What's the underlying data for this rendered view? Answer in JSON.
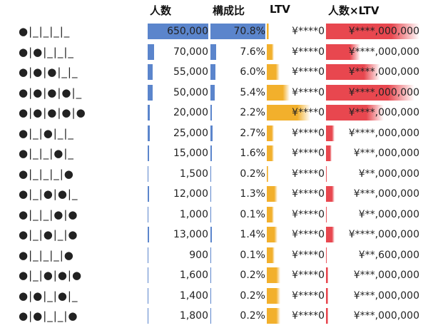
{
  "header": {
    "columns": [
      "人数",
      "構成比",
      "LTV",
      "人数×LTV"
    ]
  },
  "rows": [
    {
      "pattern": "●|_|_|_|_",
      "count": {
        "value": 650000,
        "label": "650,000"
      },
      "share": {
        "value": 70.8,
        "label": "70.8%"
      },
      "ltv": "¥****0",
      "ltv_bar": 4,
      "total": "¥****,000,000",
      "total_bar": 100
    },
    {
      "pattern": "●|●|_|_|_",
      "count": {
        "value": 70000,
        "label": "70,000"
      },
      "share": {
        "value": 7.6,
        "label": "7.6%"
      },
      "ltv": "¥****0",
      "ltv_bar": 12,
      "total": "¥****,000,000",
      "total_bar": 37
    },
    {
      "pattern": "●|●|●|_|_",
      "count": {
        "value": 55000,
        "label": "55,000"
      },
      "share": {
        "value": 6.0,
        "label": "6.0%"
      },
      "ltv": "¥****0",
      "ltv_bar": 22,
      "total": "¥****,000,000",
      "total_bar": 58
    },
    {
      "pattern": "●|●|●|●|_",
      "count": {
        "value": 50000,
        "label": "50,000"
      },
      "share": {
        "value": 5.4,
        "label": "5.4%"
      },
      "ltv": "¥****0",
      "ltv_bar": 40,
      "total": "¥****,000,000",
      "total_bar": 95
    },
    {
      "pattern": "●|●|●|●|●",
      "count": {
        "value": 20000,
        "label": "20,000"
      },
      "share": {
        "value": 2.2,
        "label": "2.2%"
      },
      "ltv": "¥****0",
      "ltv_bar": 75,
      "total": "¥****,000,000",
      "total_bar": 62
    },
    {
      "pattern": "●|_|●|_|_",
      "count": {
        "value": 25000,
        "label": "25,000"
      },
      "share": {
        "value": 2.7,
        "label": "2.7%"
      },
      "ltv": "¥****0",
      "ltv_bar": 12,
      "total": "¥****,000,000",
      "total_bar": 9
    },
    {
      "pattern": "●|_|_|●|_",
      "count": {
        "value": 15000,
        "label": "15,000"
      },
      "share": {
        "value": 1.6,
        "label": "1.6%"
      },
      "ltv": "¥****0",
      "ltv_bar": 12,
      "total": "¥***,000,000",
      "total_bar": 6
    },
    {
      "pattern": "●|_|_|_|●",
      "count": {
        "value": 1500,
        "label": "1,500"
      },
      "share": {
        "value": 0.2,
        "label": "0.2%"
      },
      "ltv": "¥****0",
      "ltv_bar": 2,
      "total": "¥**,000,000",
      "total_bar": 1
    },
    {
      "pattern": "●|_|●|●|_",
      "count": {
        "value": 12000,
        "label": "12,000"
      },
      "share": {
        "value": 1.3,
        "label": "1.3%"
      },
      "ltv": "¥****0",
      "ltv_bar": 18,
      "total": "¥***,000,000",
      "total_bar": 9
    },
    {
      "pattern": "●|_|_|●|●",
      "count": {
        "value": 1000,
        "label": "1,000"
      },
      "share": {
        "value": 0.1,
        "label": "0.1%"
      },
      "ltv": "¥****0",
      "ltv_bar": 12,
      "total": "¥**,000,000",
      "total_bar": 1
    },
    {
      "pattern": "●|_|●|_|●",
      "count": {
        "value": 13000,
        "label": "13,000"
      },
      "share": {
        "value": 1.4,
        "label": "1.4%"
      },
      "ltv": "¥****0",
      "ltv_bar": 18,
      "total": "¥****,000,000",
      "total_bar": 9
    },
    {
      "pattern": "●|_|_|_|●",
      "count": {
        "value": 900,
        "label": "900"
      },
      "share": {
        "value": 0.1,
        "label": "0.1%"
      },
      "ltv": "¥****0",
      "ltv_bar": 14,
      "total": "¥**,600,000",
      "total_bar": 1
    },
    {
      "pattern": "●|_|●|●|●",
      "count": {
        "value": 1600,
        "label": "1,600"
      },
      "share": {
        "value": 0.2,
        "label": "0.2%"
      },
      "ltv": "¥****0",
      "ltv_bar": 24,
      "total": "¥***,000,000",
      "total_bar": 2
    },
    {
      "pattern": "●|●|_|●|_",
      "count": {
        "value": 1400,
        "label": "1,400"
      },
      "share": {
        "value": 0.2,
        "label": "0.2%"
      },
      "ltv": "¥****0",
      "ltv_bar": 24,
      "total": "¥***,000,000",
      "total_bar": 2
    },
    {
      "pattern": "●|●|_|_|●",
      "count": {
        "value": 1800,
        "label": "1,800"
      },
      "share": {
        "value": 0.2,
        "label": "0.2%"
      },
      "ltv": "¥****0",
      "ltv_bar": 24,
      "total": "¥***,000,000",
      "total_bar": 2
    }
  ]
}
